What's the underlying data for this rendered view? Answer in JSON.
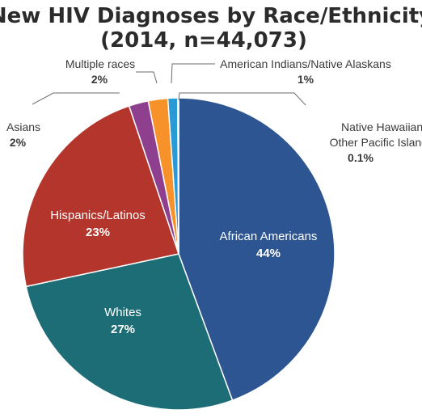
{
  "chart_data": {
    "type": "pie",
    "title": "New HIV Diagnoses by Race/Ethnicity",
    "subtitle": "(2014, n=44,073)",
    "slices": [
      {
        "label": "African Americans",
        "pct_label": "44%",
        "value": 44.0,
        "color": "#2d5592"
      },
      {
        "label": "Whites",
        "pct_label": "27%",
        "value": 27.0,
        "color": "#1c6d75"
      },
      {
        "label": "Hispanics/Latinos",
        "pct_label": "23%",
        "value": 23.0,
        "color": "#b3352b"
      },
      {
        "label": "Asians",
        "pct_label": "2%",
        "value": 2.0,
        "color": "#8e3f8e"
      },
      {
        "label": "Multiple races",
        "pct_label": "2%",
        "value": 2.0,
        "color": "#f7922a"
      },
      {
        "label": "American Indians/Native Alaskans",
        "pct_label": "1%",
        "value": 1.0,
        "color": "#2a9ad6"
      },
      {
        "label": "Native Hawaiians/Other Pacific Islanders",
        "label_lines": [
          "Native Hawaiians/",
          "Other Pacific Islanders"
        ],
        "pct_label": "0.1%",
        "value": 0.1,
        "color": "#a9cde6"
      }
    ]
  }
}
